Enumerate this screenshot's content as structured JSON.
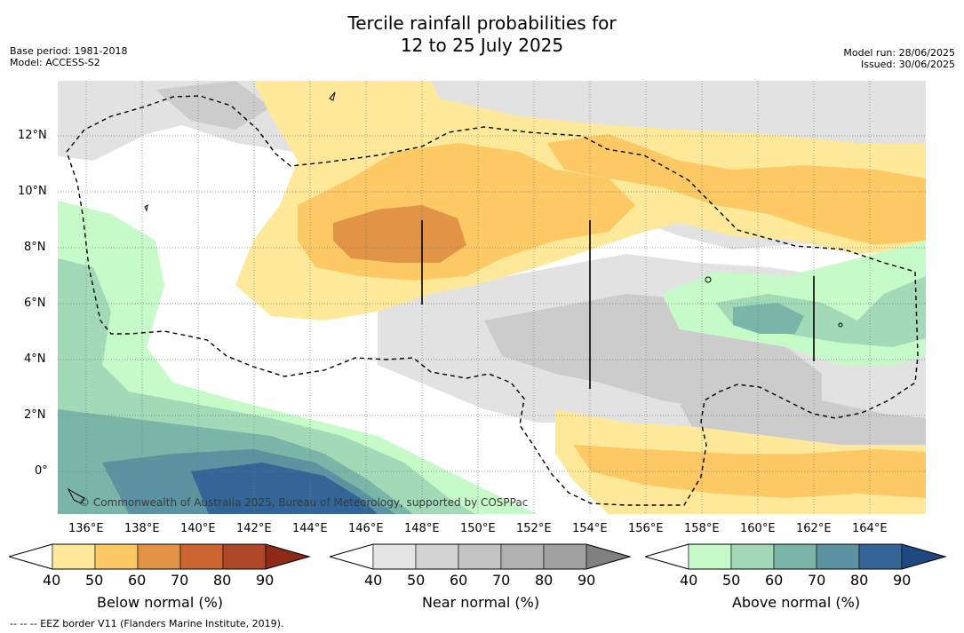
{
  "header": {
    "title_line1": "Tercile rainfall probabilities for",
    "title_line2": "12 to 25 July 2025",
    "base_period": "Base period: 1981-2018",
    "model": "Model: ACCESS-S2",
    "model_run": "Model run: 28/06/2025",
    "issued": "Issued: 30/06/2025"
  },
  "map": {
    "lat_labels": [
      "12°N",
      "10°N",
      "8°N",
      "6°N",
      "4°N",
      "2°N",
      "0°"
    ],
    "lon_labels": [
      "136°E",
      "138°E",
      "140°E",
      "142°E",
      "144°E",
      "146°E",
      "148°E",
      "150°E",
      "152°E",
      "154°E",
      "156°E",
      "158°E",
      "160°E",
      "162°E",
      "164°E"
    ],
    "lon_range": [
      134,
      165
    ],
    "lat_range": [
      -1.5,
      14
    ],
    "copyright": "© Commonwealth of Australia 2025, Bureau of Meteorology, supported by COSPPac"
  },
  "legend": {
    "ticks": [
      "40",
      "50",
      "60",
      "70",
      "80",
      "90"
    ],
    "below": {
      "label": "Below normal (%)",
      "colors": [
        "#ffffff",
        "#fee99a",
        "#fdc964",
        "#e19445",
        "#cd6633",
        "#ae4726",
        "#8c2a17"
      ]
    },
    "near": {
      "label": "Near normal (%)",
      "colors": [
        "#ffffff",
        "#e4e4e4",
        "#d3d3d3",
        "#c4c4c4",
        "#b1b1b1",
        "#a1a1a1",
        "#808080"
      ]
    },
    "above": {
      "label": "Above normal (%)",
      "colors": [
        "#ffffff",
        "#c6fac8",
        "#a2d9b7",
        "#7ab6a7",
        "#5b93a0",
        "#336596",
        "#1e4880"
      ]
    }
  },
  "footer": "-- -- -- EEZ border V11 (Flanders Marine Institute, 2019).",
  "colors": {
    "near_light": "#e2e2e2",
    "near_mid": "#cccccc",
    "below_light": "#fee99a",
    "below_mid": "#fdc964",
    "below_high": "#e19445",
    "above_light": "#c6fac8",
    "above_mid": "#a2d9b7",
    "above_high": "#7ab6a7",
    "above_higher": "#5b93a0",
    "above_max": "#336596"
  }
}
